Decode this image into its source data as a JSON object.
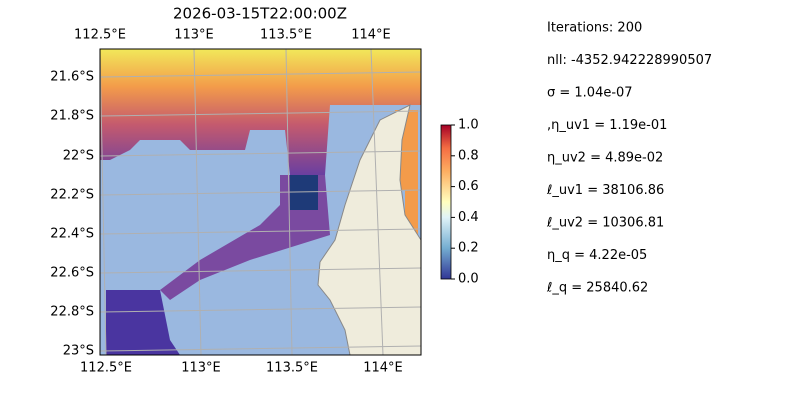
{
  "title": "2026-03-15T22:00:00Z",
  "map": {
    "top_labels": [
      "112.5°E",
      "113°E",
      "113.5°E",
      "114°E"
    ],
    "bottom_labels": [
      "112.5°E",
      "113°E",
      "113.5°E",
      "114°E"
    ],
    "left_labels": [
      "21.6°S",
      "21.8°S",
      "22°S",
      "22.2°S",
      "22.4°S",
      "22.6°S",
      "22.8°S",
      "23°S"
    ]
  },
  "colorbar": {
    "lim": [
      0,
      1
    ],
    "ticks": [
      {
        "value": 0,
        "label": "0.0"
      },
      0.2,
      0.4,
      0.6,
      0.8,
      {
        "value": 1,
        "label": "1.0"
      }
    ]
  },
  "annotations": [
    "Iterations: 200",
    "nll: -4352.942228990507",
    "σ = 1.04e-07",
    ",η_uv1 = 1.19e-01",
    "η_uv2 = 4.89e-02",
    "ℓ_uv1 = 38106.86",
    "ℓ_uv2 = 10306.81",
    "η_q = 4.22e-05",
    "ℓ_q = 25840.62"
  ]
}
